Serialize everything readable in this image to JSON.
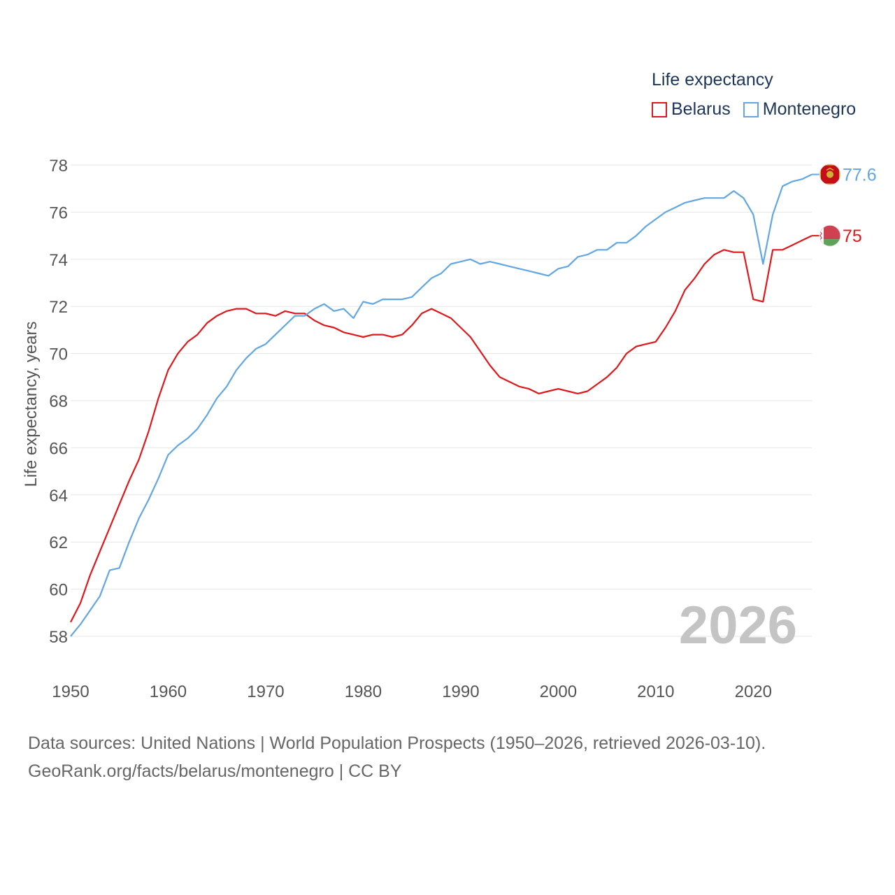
{
  "legend": {
    "title": "Life expectancy",
    "items": [
      {
        "label": "Belarus",
        "color": "#e0181b"
      },
      {
        "label": "Montenegro",
        "color": "#62a7e2"
      }
    ]
  },
  "footer": {
    "line1": "Data sources: United Nations | World Population Prospects (1950–2026, retrieved 2026-03-10).",
    "line2": "GeoRank.org/facts/belarus/montenegro | CC BY"
  },
  "chart_data": {
    "type": "line",
    "ylabel": "Life expectancy, years",
    "xlabel": "",
    "xlim": [
      1950,
      2026
    ],
    "ylim": [
      57,
      78.6
    ],
    "xticks": [
      1950,
      1960,
      1970,
      1980,
      1990,
      2000,
      2010,
      2020
    ],
    "yticks": [
      58,
      60,
      62,
      64,
      66,
      68,
      70,
      72,
      74,
      76,
      78
    ],
    "year_label": "2026",
    "x": [
      1950,
      1951,
      1952,
      1953,
      1954,
      1955,
      1956,
      1957,
      1958,
      1959,
      1960,
      1961,
      1962,
      1963,
      1964,
      1965,
      1966,
      1967,
      1968,
      1969,
      1970,
      1971,
      1972,
      1973,
      1974,
      1975,
      1976,
      1977,
      1978,
      1979,
      1980,
      1981,
      1982,
      1983,
      1984,
      1985,
      1986,
      1987,
      1988,
      1989,
      1990,
      1991,
      1992,
      1993,
      1994,
      1995,
      1996,
      1997,
      1998,
      1999,
      2000,
      2001,
      2002,
      2003,
      2004,
      2005,
      2006,
      2007,
      2008,
      2009,
      2010,
      2011,
      2012,
      2013,
      2014,
      2015,
      2016,
      2017,
      2018,
      2019,
      2020,
      2021,
      2022,
      2023,
      2024,
      2025,
      2026
    ],
    "series": [
      {
        "name": "Belarus",
        "color": "#e0181b",
        "end_label": "75",
        "flag": "belarus-flag",
        "values": [
          58.6,
          59.4,
          60.6,
          61.6,
          62.6,
          63.6,
          64.6,
          65.5,
          66.7,
          68.1,
          69.3,
          70.0,
          70.5,
          70.8,
          71.3,
          71.6,
          71.8,
          71.9,
          71.9,
          71.7,
          71.7,
          71.6,
          71.8,
          71.7,
          71.7,
          71.4,
          71.2,
          71.1,
          70.9,
          70.8,
          70.7,
          70.8,
          70.8,
          70.7,
          70.8,
          71.2,
          71.7,
          71.9,
          71.7,
          71.5,
          71.1,
          70.7,
          70.1,
          69.5,
          69.0,
          68.8,
          68.6,
          68.5,
          68.3,
          68.4,
          68.5,
          68.4,
          68.3,
          68.4,
          68.7,
          69.0,
          69.4,
          70.0,
          70.3,
          70.4,
          70.5,
          71.1,
          71.8,
          72.7,
          73.2,
          73.8,
          74.2,
          74.4,
          74.3,
          74.3,
          72.3,
          72.2,
          74.4,
          74.4,
          74.6,
          74.8,
          75.0
        ]
      },
      {
        "name": "Montenegro",
        "color": "#62a7e2",
        "end_label": "77.6",
        "flag": "montenegro-flag",
        "values": [
          58.0,
          58.5,
          59.1,
          59.7,
          60.8,
          60.9,
          62.0,
          63.0,
          63.8,
          64.7,
          65.7,
          66.1,
          66.4,
          66.8,
          67.4,
          68.1,
          68.6,
          69.3,
          69.8,
          70.2,
          70.4,
          70.8,
          71.2,
          71.6,
          71.6,
          71.9,
          72.1,
          71.8,
          71.9,
          71.5,
          72.2,
          72.1,
          72.3,
          72.3,
          72.3,
          72.4,
          72.8,
          73.2,
          73.4,
          73.8,
          73.9,
          74.0,
          73.8,
          73.9,
          73.8,
          73.7,
          73.6,
          73.5,
          73.4,
          73.3,
          73.6,
          73.7,
          74.1,
          74.2,
          74.4,
          74.4,
          74.7,
          74.7,
          75.0,
          75.4,
          75.7,
          76.0,
          76.2,
          76.4,
          76.5,
          76.6,
          76.6,
          76.6,
          76.9,
          76.6,
          75.9,
          73.8,
          75.9,
          77.1,
          77.3,
          77.4,
          77.6
        ]
      }
    ]
  }
}
